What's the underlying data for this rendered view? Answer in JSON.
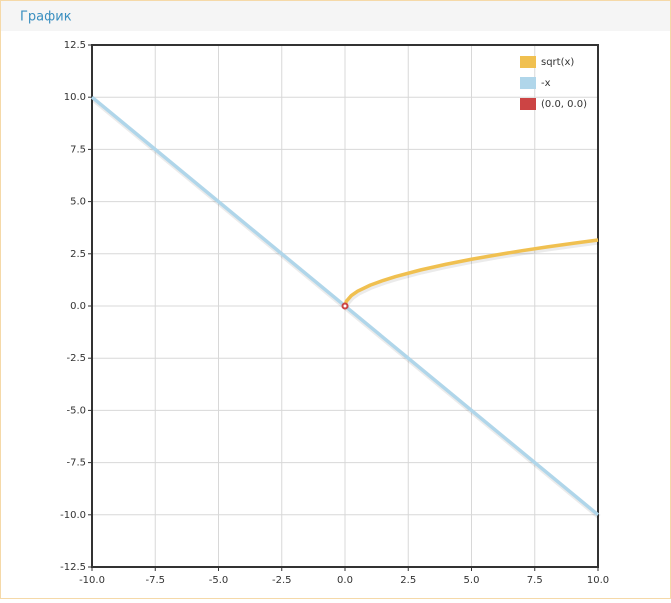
{
  "chart_data": {
    "type": "line",
    "title": "График",
    "xlim": [
      -10,
      10
    ],
    "ylim": [
      -12.5,
      12.5
    ],
    "xticks": [
      {
        "value": -10,
        "label": "-10.0"
      },
      {
        "value": -7.5,
        "label": "-7.5"
      },
      {
        "value": -5,
        "label": "-5.0"
      },
      {
        "value": -2.5,
        "label": "-2.5"
      },
      {
        "value": 0,
        "label": "0.0"
      },
      {
        "value": 2.5,
        "label": "2.5"
      },
      {
        "value": 5,
        "label": "5.0"
      },
      {
        "value": 7.5,
        "label": "7.5"
      },
      {
        "value": 10,
        "label": "10.0"
      }
    ],
    "yticks": [
      {
        "value": -12.5,
        "label": "-12.5"
      },
      {
        "value": -10,
        "label": "-10.0"
      },
      {
        "value": -7.5,
        "label": "-7.5"
      },
      {
        "value": -5,
        "label": "-5.0"
      },
      {
        "value": -2.5,
        "label": "-2.5"
      },
      {
        "value": 0,
        "label": "0.0"
      },
      {
        "value": 2.5,
        "label": "2.5"
      },
      {
        "value": 5,
        "label": "5.0"
      },
      {
        "value": 7.5,
        "label": "7.5"
      },
      {
        "value": 10,
        "label": "10.0"
      },
      {
        "value": 12.5,
        "label": "12.5"
      }
    ],
    "grid": true,
    "legend": "top-right",
    "series": [
      {
        "name": "sqrt(x)",
        "color": "#f0c050",
        "type": "line",
        "x": [
          0,
          0.05,
          0.25,
          0.5,
          1,
          1.5,
          2,
          3,
          4,
          5,
          6,
          7,
          8,
          9,
          10
        ],
        "values": [
          0,
          0.22,
          0.5,
          0.71,
          1,
          1.22,
          1.41,
          1.73,
          2,
          2.24,
          2.45,
          2.65,
          2.83,
          3,
          3.16
        ]
      },
      {
        "name": "-x",
        "color": "#b0d6ea",
        "type": "line",
        "x": [
          -10,
          10
        ],
        "values": [
          10,
          -10
        ]
      },
      {
        "name": "(0.0, 0.0)",
        "color": "#cc4444",
        "type": "scatter",
        "x": [
          0
        ],
        "values": [
          0
        ]
      }
    ]
  }
}
